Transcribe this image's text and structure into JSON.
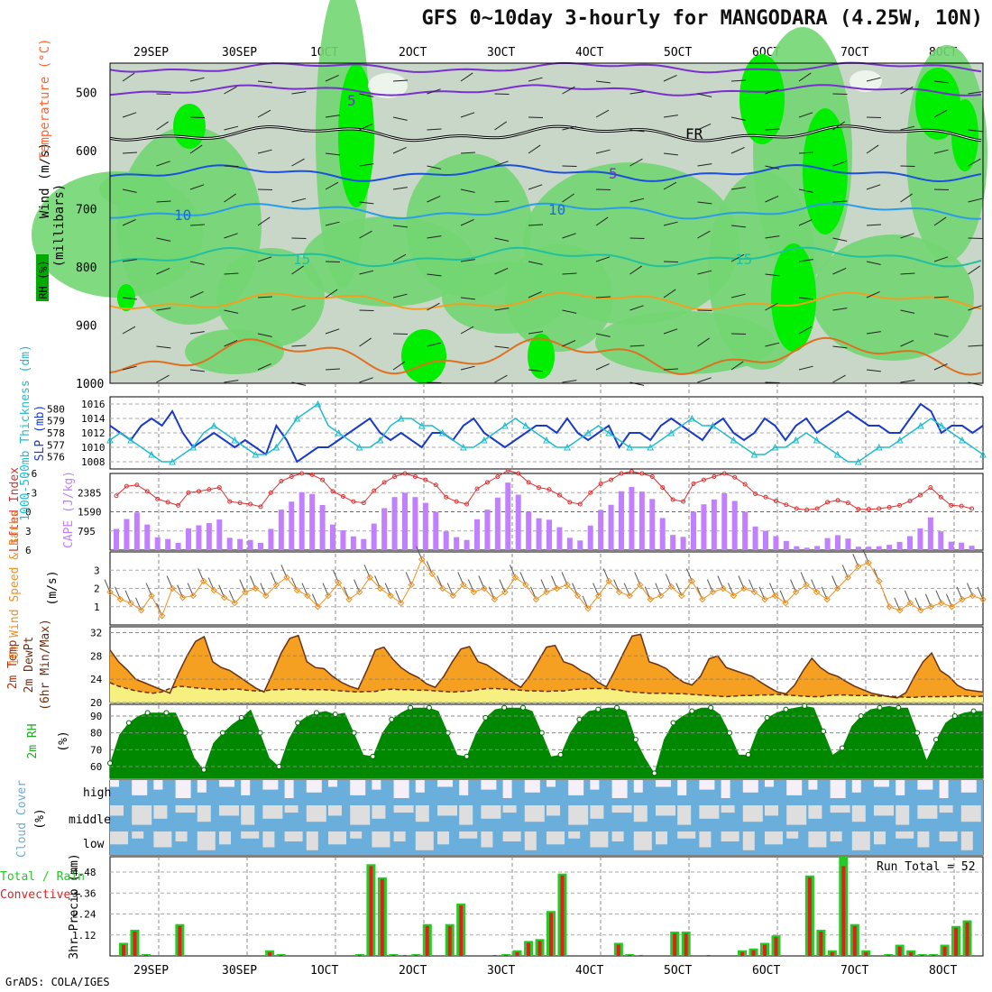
{
  "title": "GFS 0~10day 3-hourly for MANGODARA (4.25W, 10N)",
  "footer": "GrADS: COLA/IGES",
  "date_labels": [
    "29SEP",
    "30SEP",
    "1OCT",
    "2OCT",
    "3OCT",
    "4OCT",
    "5OCT",
    "6OCT",
    "7OCT",
    "8OCT"
  ],
  "panel_labels": {
    "upper": [
      {
        "text": "Wind (m/s)",
        "color": "#000000"
      },
      {
        "text": "Temperature (°C)",
        "color": "#ff6633"
      },
      {
        "text": "Temperature (°C)",
        "color": "#7a2fd0"
      },
      {
        "text": "RH (%)",
        "color": "#000000"
      },
      {
        "text": "(millibars)",
        "color": "#000000"
      }
    ],
    "slp_label": "SLP (mb)",
    "thick_label": "1000-500mb Thickness (dm)",
    "li_label": "Lifted Index",
    "cape_label": "CAPE (J/kg)",
    "wind10_label": "10m Wind Speed & Barbs",
    "wind10_unit": "(m/s)",
    "temp_label": "2m Temp",
    "dew_label": "2m DewPt",
    "minmax_label": "(6hr Min/Max)",
    "rh2_label": "2m RH",
    "rh2_unit": "(%)",
    "cloud_label": "Cloud Cover",
    "cloud_unit": "(%)",
    "cloud_levels": [
      "high",
      "middle",
      "low"
    ],
    "precip_total_label": "Total / Rain",
    "precip_conv_label": "Convective",
    "precip_axis": "3hr Precip (mm)",
    "run_total": "Run Total = 52"
  },
  "colors": {
    "rh_light": "#c8d7c8",
    "rh_mid": "#72d672",
    "rh_high": "#00ee00",
    "rh_top": "#ecf4ec",
    "slp": "#1a3acc",
    "thickness": "#22bbcc",
    "cape": "#c080ff",
    "li": "#e03030",
    "wind10": "#f09020",
    "temp_fill": "#f5a020",
    "temp_hot": "#e05010",
    "dew_fill": "#f6f080",
    "rh2_dark": "#008800",
    "rh2_light": "#00ee00",
    "cloud": "#6aaedc",
    "cloud_bg": "#dedede",
    "precip_total": "#22cc22",
    "precip_conv": "#e02020"
  },
  "chart_data": [
    {
      "type": "heatmap",
      "name": "upper",
      "ylabel": "(millibars)",
      "y_ticks": [
        500,
        600,
        700,
        800,
        900,
        1000
      ],
      "ylim": [
        1000,
        450
      ],
      "contour_labels": [
        "5",
        "5",
        "10",
        "10",
        "15",
        "15",
        "FR"
      ]
    },
    {
      "type": "line",
      "name": "slp_thickness",
      "y_ticks_left": [
        576,
        577,
        578,
        579,
        580
      ],
      "y_ticks_right": [
        1008,
        1010,
        1012,
        1014,
        1016
      ],
      "series": [
        {
          "name": "SLP (mb)",
          "values": [
            1013,
            1012,
            1011,
            1013,
            1014,
            1013,
            1015,
            1012,
            1010,
            1011,
            1012,
            1011,
            1010,
            1011,
            1010,
            1009,
            1013,
            1011,
            1008,
            1009,
            1010,
            1010,
            1011,
            1012,
            1013,
            1014,
            1012,
            1011,
            1012,
            1011,
            1010,
            1012,
            1012,
            1011,
            1013,
            1014,
            1012,
            1011,
            1010,
            1011,
            1012,
            1013,
            1013,
            1012,
            1014,
            1012,
            1011,
            1012,
            1013,
            1010,
            1012,
            1012,
            1011,
            1013,
            1014,
            1013,
            1012,
            1011,
            1013,
            1014,
            1012,
            1011,
            1012,
            1014,
            1013,
            1011,
            1013,
            1014,
            1012,
            1013,
            1014,
            1015,
            1014,
            1013,
            1013,
            1012,
            1012,
            1014,
            1016,
            1015,
            1012,
            1013,
            1013,
            1012,
            1013
          ]
        },
        {
          "name": "1000-500mb Thickness (dm)",
          "values": [
            1011,
            1012,
            1011,
            1010,
            1009,
            1008,
            1008,
            1009,
            1010,
            1012,
            1013,
            1012,
            1011,
            1010,
            1009,
            1009,
            1010,
            1012,
            1014,
            1015,
            1016,
            1013,
            1012,
            1011,
            1010,
            1010,
            1011,
            1013,
            1014,
            1014,
            1013,
            1013,
            1012,
            1011,
            1010,
            1010,
            1011,
            1012,
            1013,
            1014,
            1013,
            1012,
            1011,
            1010,
            1010,
            1011,
            1012,
            1013,
            1012,
            1011,
            1010,
            1010,
            1010,
            1011,
            1012,
            1013,
            1014,
            1013,
            1013,
            1012,
            1011,
            1010,
            1009,
            1009,
            1010,
            1010,
            1011,
            1012,
            1011,
            1010,
            1009,
            1008,
            1008,
            1009,
            1010,
            1010,
            1011,
            1012,
            1013,
            1014,
            1013,
            1012,
            1011,
            1010,
            1009
          ]
        }
      ]
    },
    {
      "type": "bar",
      "name": "cape_li",
      "y_ticks_left": [
        -6,
        -3,
        0,
        3,
        6
      ],
      "y_ticks_right": [
        795,
        1590,
        2385
      ],
      "series": [
        {
          "name": "CAPE (J/kg)",
          "values": [
            880,
            1290,
            1560,
            1060,
            530,
            460,
            300,
            900,
            1030,
            1120,
            1270,
            510,
            460,
            420,
            300,
            880,
            1680,
            2010,
            2400,
            2330,
            1870,
            1060,
            820,
            570,
            460,
            1100,
            1740,
            2200,
            2380,
            2200,
            1960,
            1590,
            780,
            540,
            420,
            1280,
            1680,
            2180,
            2800,
            2300,
            1590,
            1320,
            1260,
            950,
            510,
            400,
            1020,
            1670,
            1880,
            2440,
            2620,
            2430,
            2120,
            1330,
            630,
            550,
            1590,
            1900,
            2100,
            2360,
            2040,
            1590,
            980,
            800,
            580,
            380,
            160,
            100,
            170,
            500,
            620,
            480,
            140,
            140,
            160,
            220,
            340,
            580,
            900,
            1360,
            780,
            350,
            310,
            180
          ]
        },
        {
          "name": "Lifted Index",
          "values": [
            -2.5,
            -4,
            -4.2,
            -3.2,
            -2,
            -1.5,
            -1,
            -3,
            -3.2,
            -3.5,
            -3.8,
            -1.6,
            -1.4,
            -1.2,
            -0.8,
            -3,
            -4.8,
            -5.5,
            -6,
            -5.8,
            -5,
            -3.2,
            -2.4,
            -1.6,
            -1.4,
            -3.3,
            -4.6,
            -5.5,
            -6,
            -5.5,
            -5,
            -4.2,
            -2.3,
            -1.6,
            -1.2,
            -3.6,
            -4.6,
            -5.5,
            -6.5,
            -6,
            -4.6,
            -3.8,
            -3.5,
            -2.6,
            -1.5,
            -1.2,
            -3,
            -4.4,
            -5,
            -6,
            -6.3,
            -6,
            -5.5,
            -3.8,
            -1.9,
            -1.6,
            -4.4,
            -5,
            -5.5,
            -6,
            -5.4,
            -4.3,
            -2.8,
            -2.3,
            -1.7,
            -1.1,
            -0.5,
            -0.3,
            -0.5,
            -1.5,
            -1.8,
            -1.4,
            -0.4,
            -0.4,
            -0.5,
            -0.7,
            -1,
            -1.7,
            -2.6,
            -3.8,
            -2.3,
            -1,
            -0.9,
            -0.5
          ]
        }
      ]
    },
    {
      "type": "line",
      "name": "wind10",
      "y_ticks": [
        1,
        2,
        3
      ],
      "ylim": [
        0,
        4
      ],
      "series": [
        {
          "name": "10m Wind Speed",
          "values": [
            1.8,
            1.4,
            1.2,
            0.8,
            1.6,
            0.5,
            2.0,
            1.5,
            1.6,
            2.4,
            1.9,
            1.5,
            1.2,
            1.8,
            2.0,
            1.6,
            2.2,
            2.6,
            1.9,
            1.6,
            1.0,
            1.6,
            2.3,
            1.4,
            1.8,
            2.6,
            2.0,
            1.6,
            1.2,
            2.2,
            3.6,
            2.8,
            2.0,
            1.6,
            2.2,
            1.8,
            2.0,
            1.4,
            1.8,
            2.6,
            2.2,
            1.4,
            1.8,
            2.0,
            2.2,
            1.6,
            0.9,
            1.6,
            2.4,
            1.8,
            1.6,
            2.2,
            1.4,
            1.6,
            2.1,
            1.6,
            2.4,
            1.4,
            1.8,
            2.0,
            1.6,
            2.0,
            1.8,
            1.4,
            1.6,
            1.2,
            1.8,
            2.2,
            1.8,
            1.4,
            2.0,
            2.6,
            3.2,
            3.4,
            2.4,
            1.0,
            0.8,
            1.2,
            0.8,
            1.0,
            1.2,
            1.0,
            1.4,
            1.6,
            1.4
          ]
        }
      ]
    },
    {
      "type": "area",
      "name": "temp2m",
      "y_ticks": [
        20,
        24,
        28,
        32
      ],
      "ylim": [
        20,
        33
      ],
      "series": [
        {
          "name": "2m Temp",
          "values": [
            29,
            27,
            25.6,
            24,
            23.4,
            22.8,
            22.2,
            21.6,
            25,
            28,
            30.5,
            31.3,
            27,
            26,
            25.5,
            24.5,
            23.5,
            22.5,
            21.8,
            25,
            28.5,
            31,
            31.5,
            27,
            26,
            25.8,
            24.5,
            23.5,
            22.8,
            22.3,
            25.5,
            29,
            29.5,
            27.5,
            26,
            25,
            24.3,
            23.2,
            22.6,
            24.5,
            27,
            29.2,
            29.6,
            27,
            26.5,
            25.5,
            24.5,
            23.5,
            22.6,
            24.5,
            27,
            29.5,
            29.8,
            27,
            26.5,
            25.5,
            24.8,
            23.5,
            22.7,
            25.5,
            28.5,
            31.4,
            31.7,
            27,
            26.5,
            25.8,
            24.5,
            23.5,
            23,
            24.5,
            27.5,
            28,
            26,
            25.5,
            25,
            24.5,
            23.5,
            22.6,
            21.8,
            21.5,
            23,
            25.5,
            27.6,
            26,
            25,
            24.5,
            23.6,
            22.8,
            22.2,
            21.6,
            21.3,
            21,
            20.8,
            21.7,
            24.5,
            27,
            28.5,
            25.5,
            24.5,
            23,
            22.2,
            22,
            21.8
          ]
        },
        {
          "name": "2m DewPt",
          "values": [
            23.4,
            22.8,
            22.4,
            22,
            21.8,
            21.6,
            21.8,
            22.4,
            22.8,
            22.7,
            22.5,
            22.4,
            22.3,
            22.2,
            22.3,
            22.3,
            22.1,
            22,
            22,
            22.2,
            22.2,
            22.3,
            22.3,
            22.2,
            22.2,
            22.2,
            22.1,
            22,
            21.9,
            21.8,
            21.9,
            21.9,
            22.2,
            22.3,
            22.2,
            22.2,
            22.1,
            22.1,
            22,
            21.9,
            21.8,
            21.9,
            22,
            22.2,
            22.4,
            22.4,
            22.3,
            22.2,
            22.1,
            22,
            22,
            21.9,
            22,
            22,
            22.2,
            22.3,
            22.4,
            22.4,
            22.4,
            22.2,
            22,
            21.8,
            21.7,
            21.6,
            21.6,
            21.6,
            21.5,
            21.5,
            21.4,
            21.3,
            21.2,
            21.1,
            21,
            21.1,
            21.2,
            21.2,
            21.3,
            21.3,
            21.4,
            21.3,
            21.2,
            21.1,
            21,
            21,
            21.2,
            21.3,
            21.3,
            21.2,
            21.2,
            21.2,
            21.1,
            21.1,
            21,
            20.9,
            20.9,
            21,
            21,
            21,
            21,
            21.1,
            21.1,
            21,
            21.1
          ]
        }
      ]
    },
    {
      "type": "area",
      "name": "rh2m",
      "y_ticks": [
        60,
        70,
        80,
        90
      ],
      "ylim": [
        53,
        97
      ],
      "series": [
        {
          "name": "2m RH",
          "values": [
            62,
            79,
            86,
            90,
            92,
            92,
            92,
            92,
            80,
            65,
            58,
            74,
            80,
            85,
            89,
            94,
            80,
            65,
            60,
            76,
            86,
            90,
            92,
            93,
            91,
            92,
            80,
            67,
            66,
            80,
            88,
            92,
            95,
            95,
            95,
            93,
            80,
            67,
            66,
            80,
            89,
            94,
            95,
            95,
            95,
            93,
            80,
            66,
            67,
            80,
            88,
            93,
            94,
            95,
            95,
            93,
            76,
            65,
            56,
            76,
            86,
            90,
            93,
            95,
            95,
            91,
            80,
            67,
            67,
            82,
            89,
            92,
            94,
            95,
            96,
            95,
            81,
            67,
            71,
            84,
            90,
            94,
            95,
            96,
            95,
            95,
            80,
            64,
            76,
            86,
            90,
            92,
            93,
            93
          ]
        }
      ]
    },
    {
      "type": "heatmap",
      "name": "cloud",
      "rows": [
        "high",
        "middle",
        "low"
      ]
    },
    {
      "type": "bar",
      "name": "precip",
      "y_ticks": [
        1.12,
        2.24,
        3.36,
        4.48
      ],
      "ylim": [
        0,
        5.3
      ],
      "series": [
        {
          "name": "Total / Rain",
          "values": [
            0.7,
            1.4,
            0.1,
            0,
            0,
            1.7,
            0,
            0,
            0,
            0,
            0,
            0,
            0,
            0.3,
            0.1,
            0,
            0,
            0,
            0,
            0,
            0,
            0.1,
            4.9,
            4.2,
            0.1,
            0.05,
            0.1,
            1.7,
            0,
            1.7,
            2.8,
            0,
            0,
            0.05,
            0.1,
            0.3,
            0.8,
            0.9,
            2.4,
            4.4,
            0,
            0,
            0,
            0,
            0.7,
            0.1,
            0.05,
            0,
            0,
            1.3,
            1.3,
            0,
            0.05,
            0,
            0,
            0.3,
            0.4,
            0.7,
            1.1,
            0,
            0,
            4.3,
            1.4,
            0.3,
            5.3,
            1.7,
            0.3,
            0,
            0.1,
            0.6,
            0.3,
            0.1,
            0.1,
            0.6,
            1.6,
            1.9
          ]
        },
        {
          "name": "Convective",
          "values": [
            0.6,
            1.3,
            0.05,
            0,
            0,
            1.6,
            0,
            0,
            0,
            0,
            0,
            0,
            0,
            0.2,
            0.05,
            0,
            0,
            0,
            0,
            0,
            0,
            0.05,
            4.8,
            4.1,
            0.05,
            0.05,
            0.05,
            1.6,
            0,
            1.6,
            2.7,
            0,
            0,
            0.05,
            0.05,
            0.2,
            0.7,
            0.8,
            2.3,
            4.3,
            0,
            0,
            0,
            0,
            0.6,
            0.05,
            0.05,
            0,
            0,
            1.2,
            1.2,
            0,
            0.05,
            0,
            0,
            0.2,
            0.3,
            0.6,
            1.0,
            0,
            0,
            4.2,
            1.3,
            0.2,
            4.8,
            1.6,
            0.2,
            0,
            0.05,
            0.5,
            0.2,
            0.05,
            0.05,
            0.5,
            1.5,
            1.8
          ]
        }
      ]
    }
  ]
}
